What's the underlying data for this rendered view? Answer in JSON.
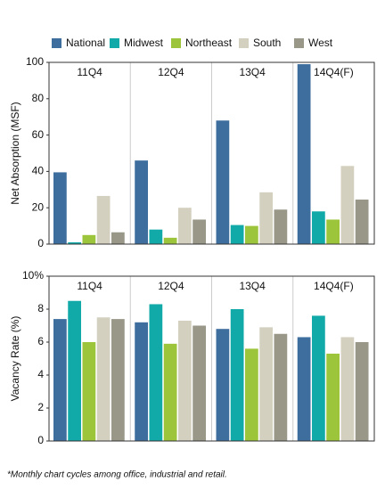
{
  "chart_data": [
    {
      "type": "bar",
      "y_label": "Net Absorption (MSF)",
      "categories": [
        "11Q4",
        "12Q4",
        "13Q4",
        "14Q4(F)"
      ],
      "series": [
        {
          "name": "National",
          "color": "#3e6e9e",
          "values": [
            39.5,
            46,
            68,
            99
          ]
        },
        {
          "name": "Midwest",
          "color": "#12aaa8",
          "values": [
            1,
            8,
            10.5,
            18
          ]
        },
        {
          "name": "Northeast",
          "color": "#9dc53b",
          "values": [
            5,
            3.5,
            10,
            13.5
          ]
        },
        {
          "name": "South",
          "color": "#d4d0c0",
          "values": [
            26.5,
            20,
            28.5,
            43
          ]
        },
        {
          "name": "West",
          "color": "#999787",
          "values": [
            6.5,
            13.5,
            19,
            24.5
          ]
        }
      ],
      "ylim": [
        0,
        100
      ],
      "yticks": [
        0,
        20,
        40,
        60,
        80,
        100
      ]
    },
    {
      "type": "bar",
      "y_label": "Vacancy Rate (%)",
      "categories": [
        "11Q4",
        "12Q4",
        "13Q4",
        "14Q4(F)"
      ],
      "series": [
        {
          "color": "#3e6e9e",
          "values": [
            7.4,
            7.2,
            6.8,
            6.3
          ]
        },
        {
          "color": "#12aaa8",
          "values": [
            8.5,
            8.3,
            8.0,
            7.6
          ]
        },
        {
          "color": "#9dc53b",
          "values": [
            6.0,
            5.9,
            5.6,
            5.3
          ]
        },
        {
          "color": "#d4d0c0",
          "values": [
            7.5,
            7.3,
            6.9,
            6.3
          ]
        },
        {
          "color": "#999787",
          "values": [
            7.4,
            7.0,
            6.5,
            6.0
          ]
        }
      ],
      "ylim": [
        0,
        10
      ],
      "yticks": [
        0,
        2,
        4,
        6,
        8,
        {
          "value": 10,
          "label": "10%"
        }
      ]
    }
  ],
  "footnote": "*Monthly chart cycles among office, industrial and retail."
}
